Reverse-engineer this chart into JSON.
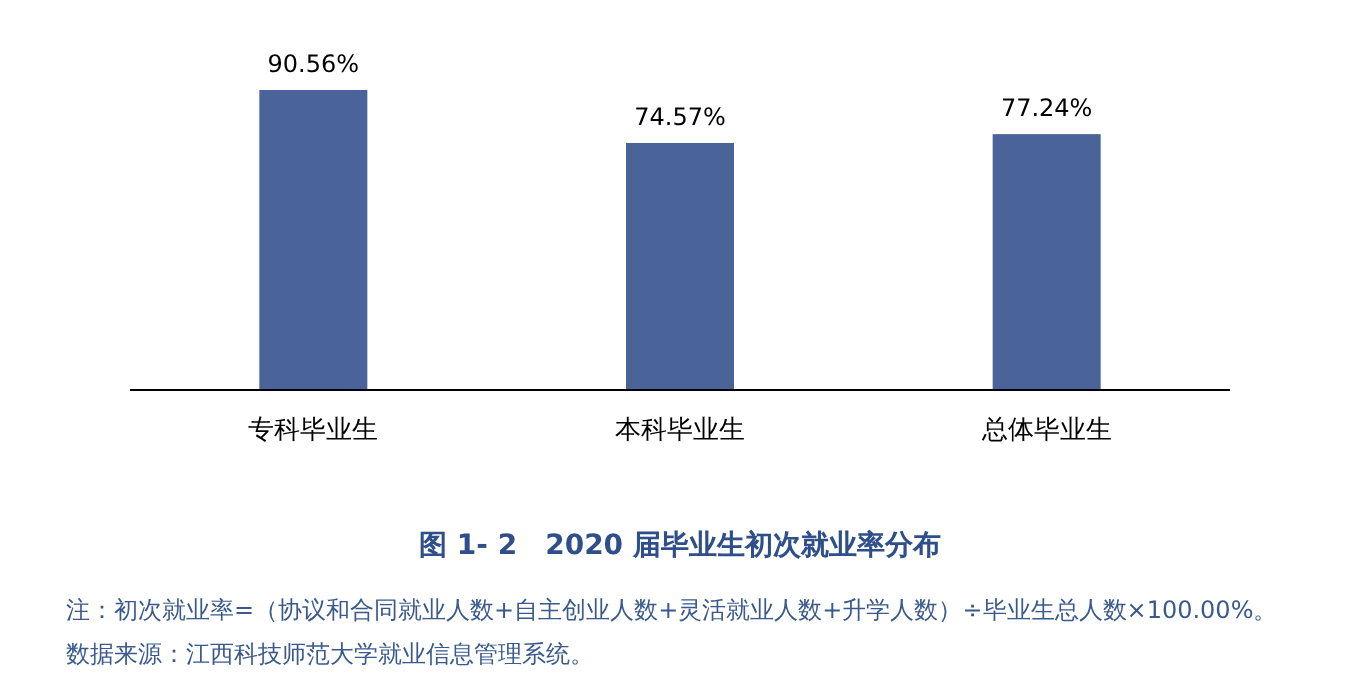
{
  "chart_data": {
    "type": "bar",
    "title": "图 1- 2　2020 届毕业生初次就业率分布",
    "categories": [
      "专科毕业生",
      "本科毕业生",
      "总体毕业生"
    ],
    "values": [
      90.56,
      74.57,
      77.24
    ],
    "color": "#4a6399",
    "value_labels": [
      "90.56%",
      "74.57%",
      "77.24%"
    ],
    "annotations": [
      "注：初次就业率=（协议和合同就业人数+自主创业人数+灵活就业人数+升学人数）÷毕业生总人数×100.00%。",
      "数据来源：江西科技师范大学就业信息管理系统。"
    ]
  }
}
